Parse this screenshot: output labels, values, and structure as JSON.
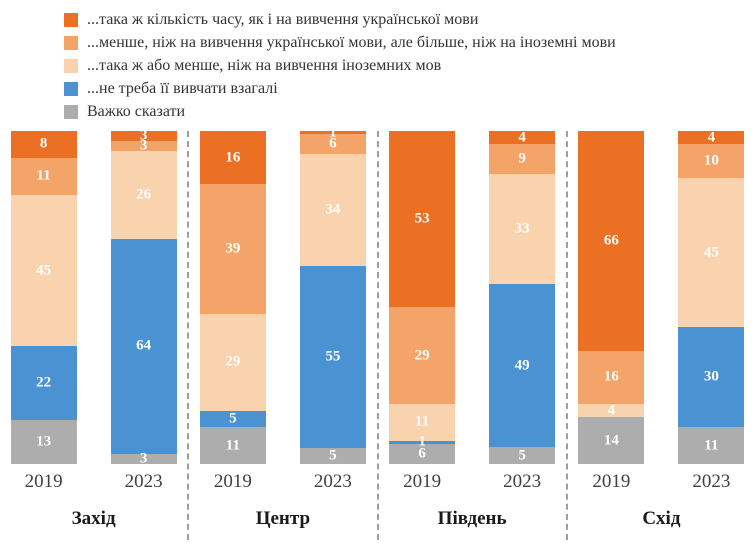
{
  "chart_data": {
    "type": "bar",
    "variant": "stacked-percent-column",
    "grid": false,
    "legend_position": "top-left",
    "ylim": [
      0,
      100
    ],
    "series": [
      {
        "name": "...така ж кількість часу, як і на вивчення української мови",
        "color": "#EC7023"
      },
      {
        "name": "...менше, ніж на вивчення української мови, але більше, ніж на іноземні мови",
        "color": "#F5A469"
      },
      {
        "name": "...така ж або менше, ніж на вивчення іноземних мов",
        "color": "#F9D2AE"
      },
      {
        "name": "...не треба її вивчати взагалі",
        "color": "#4B92D2"
      },
      {
        "name": "Важко сказати",
        "color": "#ADADAD"
      }
    ],
    "groups": [
      {
        "region": "Захід",
        "bars": [
          {
            "year": "2019",
            "values": [
              8,
              11,
              45,
              22,
              13
            ]
          },
          {
            "year": "2023",
            "values": [
              3,
              3,
              26,
              64,
              3
            ]
          }
        ]
      },
      {
        "region": "Центр",
        "bars": [
          {
            "year": "2019",
            "values": [
              16,
              39,
              29,
              5,
              11
            ]
          },
          {
            "year": "2023",
            "values": [
              1,
              6,
              34,
              55,
              5
            ]
          }
        ]
      },
      {
        "region": "Південь",
        "bars": [
          {
            "year": "2019",
            "values": [
              53,
              29,
              11,
              1,
              6
            ]
          },
          {
            "year": "2023",
            "values": [
              4,
              9,
              33,
              49,
              5
            ]
          }
        ]
      },
      {
        "region": "Схід",
        "bars": [
          {
            "year": "2019",
            "values": [
              66,
              16,
              4,
              0,
              14
            ]
          },
          {
            "year": "2023",
            "values": [
              4,
              10,
              45,
              30,
              11
            ]
          }
        ]
      }
    ]
  }
}
